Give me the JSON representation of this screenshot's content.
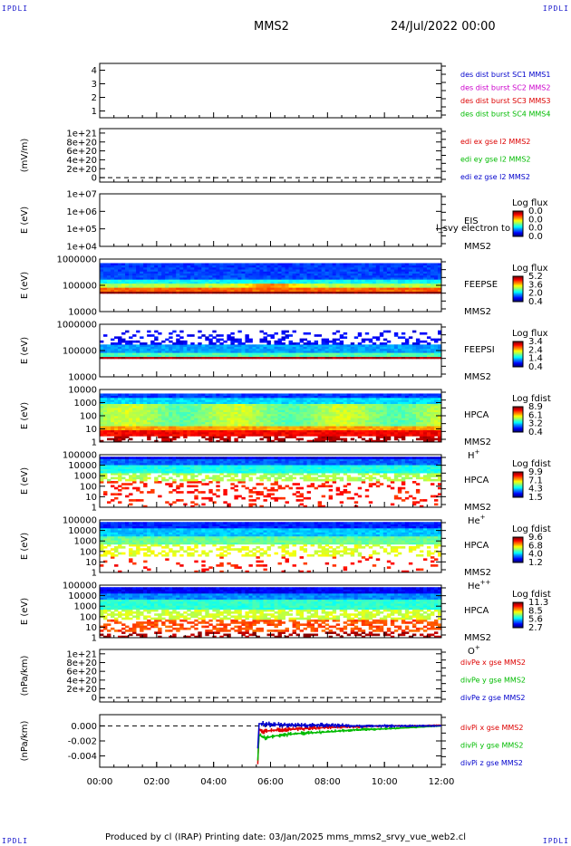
{
  "header": {
    "corner_label": "IPDLI",
    "spacecraft": "MMS2",
    "datetime": "24/Jul/2022 00:00"
  },
  "footer": {
    "text": "Produced by cl (IRAP)   Printing date: 03/Jan/2025   mms_mms2_srvy_vue_web2.cl"
  },
  "colors": {
    "red": "#dd0000",
    "magenta": "#cc00cc",
    "green": "#00bb00",
    "blue": "#0000cc",
    "dashed": "#000000"
  },
  "chart_data": {
    "type": "stack",
    "time_axis": {
      "range_hours": [
        0,
        12
      ],
      "tick_labels": [
        "00:00",
        "02:00",
        "04:00",
        "06:00",
        "08:00",
        "10:00",
        "12:00"
      ]
    },
    "panels": [
      {
        "kind": "line",
        "ylabel": "",
        "ylim": [
          0.5,
          4.5
        ],
        "yticks": [
          {
            "v": 1,
            "t": "1"
          },
          {
            "v": 2,
            "t": "2"
          },
          {
            "v": 3,
            "t": "3"
          },
          {
            "v": 4,
            "t": "4"
          }
        ],
        "legend": [
          {
            "text": "des dist burst SC1 MMS1",
            "color": "blue"
          },
          {
            "text": "des dist burst SC2 MMS2",
            "color": "magenta"
          },
          {
            "text": "des dist burst SC3 MMS3",
            "color": "red"
          },
          {
            "text": "des dist burst SC4 MMS4",
            "color": "green"
          }
        ]
      },
      {
        "kind": "line",
        "ylabel": "(mV/m)",
        "ylim": [
          -1e+20,
          1.1e+21
        ],
        "dashed_zero": true,
        "yticks": [
          {
            "v": 1e+21,
            "t": "1e+21"
          },
          {
            "v": 8e+20,
            "t": "8e+20"
          },
          {
            "v": 6e+20,
            "t": "6e+20"
          },
          {
            "v": 4e+20,
            "t": "4e+20"
          },
          {
            "v": 2e+20,
            "t": "2e+20"
          },
          {
            "v": 0,
            "t": "0"
          }
        ],
        "legend": [
          {
            "text": "edi ex gse l2 MMS2",
            "color": "red"
          },
          {
            "text": "edi ey gse l2 MMS2",
            "color": "green"
          },
          {
            "text": "edi ez gse l2 MMS2",
            "color": "blue"
          }
        ]
      },
      {
        "kind": "spectrogram",
        "ylabel": "E (eV)",
        "log": true,
        "ylim": [
          10000.0,
          10000000.0
        ],
        "yticks": [
          {
            "v": 10000000.0,
            "t": "1e+07"
          },
          {
            "v": 1000000.0,
            "t": "1e+06"
          },
          {
            "v": 100000.0,
            "t": "1e+05"
          },
          {
            "v": 10000.0,
            "t": "1e+04"
          }
        ],
        "labels": [
          "EIS",
          "MMS2"
        ],
        "overlay_text": "l_svy electron to",
        "colorbar": {
          "title": "Log flux",
          "ticks": [
            "0.0",
            "0.0",
            "0.0",
            "0.0"
          ]
        },
        "data": "none"
      },
      {
        "kind": "spectrogram",
        "ylabel": "E (eV)",
        "log": true,
        "ylim": [
          10000.0,
          1000000.0
        ],
        "yticks": [
          {
            "v": 1000000.0,
            "t": "1000000"
          },
          {
            "v": 100000.0,
            "t": "100000"
          },
          {
            "v": 10000.0,
            "t": "10000"
          }
        ],
        "labels": [
          "FEEPSE",
          "MMS2"
        ],
        "colorbar": {
          "title": "Log flux",
          "ticks": [
            "5.2",
            "3.6",
            "2.0",
            "0.4"
          ]
        },
        "data": "feepse"
      },
      {
        "kind": "spectrogram",
        "ylabel": "E (eV)",
        "log": true,
        "ylim": [
          10000.0,
          1000000.0
        ],
        "yticks": [
          {
            "v": 1000000.0,
            "t": "1000000"
          },
          {
            "v": 100000.0,
            "t": "100000"
          },
          {
            "v": 10000.0,
            "t": "10000"
          }
        ],
        "labels": [
          "FEEPSI",
          "MMS2"
        ],
        "colorbar": {
          "title": "Log flux",
          "ticks": [
            "3.4",
            "2.4",
            "1.4",
            "0.4"
          ]
        },
        "data": "feepsi"
      },
      {
        "kind": "spectrogram",
        "ylabel": "E (eV)",
        "log": true,
        "ylim": [
          1,
          10000
        ],
        "yticks": [
          {
            "v": 10000,
            "t": "10000"
          },
          {
            "v": 1000,
            "t": "1000"
          },
          {
            "v": 100,
            "t": "100"
          },
          {
            "v": 10,
            "t": "10"
          },
          {
            "v": 1,
            "t": "1"
          }
        ],
        "labels": [
          "HPCA",
          "MMS2"
        ],
        "species": "H",
        "species_sup": "+",
        "colorbar": {
          "title": "Log fdist",
          "ticks": [
            "8.9",
            "6.1",
            "3.2",
            "0.4"
          ]
        },
        "data": "hplus"
      },
      {
        "kind": "spectrogram",
        "ylabel": "E (eV)",
        "log": true,
        "ylim": [
          1,
          100000
        ],
        "yticks": [
          {
            "v": 100000,
            "t": "100000"
          },
          {
            "v": 10000,
            "t": "10000"
          },
          {
            "v": 1000,
            "t": "1000"
          },
          {
            "v": 100,
            "t": "100"
          },
          {
            "v": 10,
            "t": "10"
          },
          {
            "v": 1,
            "t": "1"
          }
        ],
        "labels": [
          "HPCA",
          "MMS2"
        ],
        "species": "He",
        "species_sup": "+",
        "colorbar": {
          "title": "Log fdist",
          "ticks": [
            "9.9",
            "7.1",
            "4.3",
            "1.5"
          ]
        },
        "data": "heplus"
      },
      {
        "kind": "spectrogram",
        "ylabel": "E (eV)",
        "log": true,
        "ylim": [
          1,
          100000
        ],
        "yticks": [
          {
            "v": 100000,
            "t": "100000"
          },
          {
            "v": 10000,
            "t": "10000"
          },
          {
            "v": 1000,
            "t": "1000"
          },
          {
            "v": 100,
            "t": "100"
          },
          {
            "v": 10,
            "t": "10"
          },
          {
            "v": 1,
            "t": "1"
          }
        ],
        "labels": [
          "HPCA",
          "MMS2"
        ],
        "species": "He",
        "species_sup": "++",
        "colorbar": {
          "title": "Log fdist",
          "ticks": [
            "9.6",
            "6.8",
            "4.0",
            "1.2"
          ]
        },
        "data": "heplusplus"
      },
      {
        "kind": "spectrogram",
        "ylabel": "E (eV)",
        "log": true,
        "ylim": [
          1,
          100000
        ],
        "yticks": [
          {
            "v": 100000,
            "t": "100000"
          },
          {
            "v": 10000,
            "t": "10000"
          },
          {
            "v": 1000,
            "t": "1000"
          },
          {
            "v": 100,
            "t": "100"
          },
          {
            "v": 10,
            "t": "10"
          },
          {
            "v": 1,
            "t": "1"
          }
        ],
        "labels": [
          "HPCA",
          "MMS2"
        ],
        "species": "O",
        "species_sup": "+",
        "colorbar": {
          "title": "Log fdist",
          "ticks": [
            "11.3",
            "8.5",
            "5.6",
            "2.7"
          ]
        },
        "data": "oplus"
      },
      {
        "kind": "line",
        "ylabel": "(nPa/km)",
        "ylim": [
          -1e+20,
          1.1e+21
        ],
        "dashed_zero": true,
        "yticks": [
          {
            "v": 1e+21,
            "t": "1e+21"
          },
          {
            "v": 8e+20,
            "t": "8e+20"
          },
          {
            "v": 6e+20,
            "t": "6e+20"
          },
          {
            "v": 4e+20,
            "t": "4e+20"
          },
          {
            "v": 2e+20,
            "t": "2e+20"
          },
          {
            "v": 0,
            "t": "0"
          }
        ],
        "legend": [
          {
            "text": "divPe x gse MMS2",
            "color": "red"
          },
          {
            "text": "divPe y gse MMS2",
            "color": "green"
          },
          {
            "text": "divPe z gse MMS2",
            "color": "blue"
          }
        ]
      },
      {
        "kind": "line",
        "ylabel": "(nPa/km)",
        "ylim": [
          -0.0055,
          0.0015
        ],
        "dashed_zero": true,
        "yticks": [
          {
            "v": 0.0,
            "t": "0.000"
          },
          {
            "v": -0.002,
            "t": "-0.002"
          },
          {
            "v": -0.004,
            "t": "-0.004"
          }
        ],
        "legend": [
          {
            "text": "divPi x gse MMS2",
            "color": "red"
          },
          {
            "text": "divPi y gse MMS2",
            "color": "green"
          },
          {
            "text": "divPi z gse MMS2",
            "color": "blue"
          }
        ],
        "series": [
          {
            "name": "divPi x gse MMS2",
            "color": "red",
            "points": [
              [
                5.55,
                -0.0051
              ],
              [
                5.6,
                -0.0004
              ],
              [
                5.7,
                -0.0008
              ],
              [
                6.0,
                -0.0006
              ],
              [
                7.0,
                -0.0004
              ],
              [
                8.0,
                -0.0002
              ],
              [
                9.0,
                -0.0001
              ],
              [
                10.0,
                0.0
              ],
              [
                11.0,
                0.0
              ],
              [
                12.0,
                0.0001
              ]
            ]
          },
          {
            "name": "divPi y gse MMS2",
            "color": "green",
            "points": [
              [
                5.55,
                -0.0046
              ],
              [
                5.6,
                -0.0012
              ],
              [
                5.8,
                -0.0016
              ],
              [
                6.2,
                -0.0013
              ],
              [
                7.0,
                -0.001
              ],
              [
                8.0,
                -0.0008
              ],
              [
                9.0,
                -0.0005
              ],
              [
                10.0,
                -0.0004
              ],
              [
                11.0,
                -0.0002
              ],
              [
                12.0,
                0.0
              ]
            ]
          },
          {
            "name": "divPi z gse MMS2",
            "color": "blue",
            "points": [
              [
                5.55,
                -0.003
              ],
              [
                5.6,
                0.0003
              ],
              [
                6.0,
                0.0002
              ],
              [
                7.0,
                0.0001
              ],
              [
                8.0,
                0.0001
              ],
              [
                9.0,
                0.0
              ],
              [
                10.0,
                0.0
              ],
              [
                11.0,
                0.0
              ],
              [
                12.0,
                0.0
              ]
            ]
          }
        ]
      }
    ]
  }
}
